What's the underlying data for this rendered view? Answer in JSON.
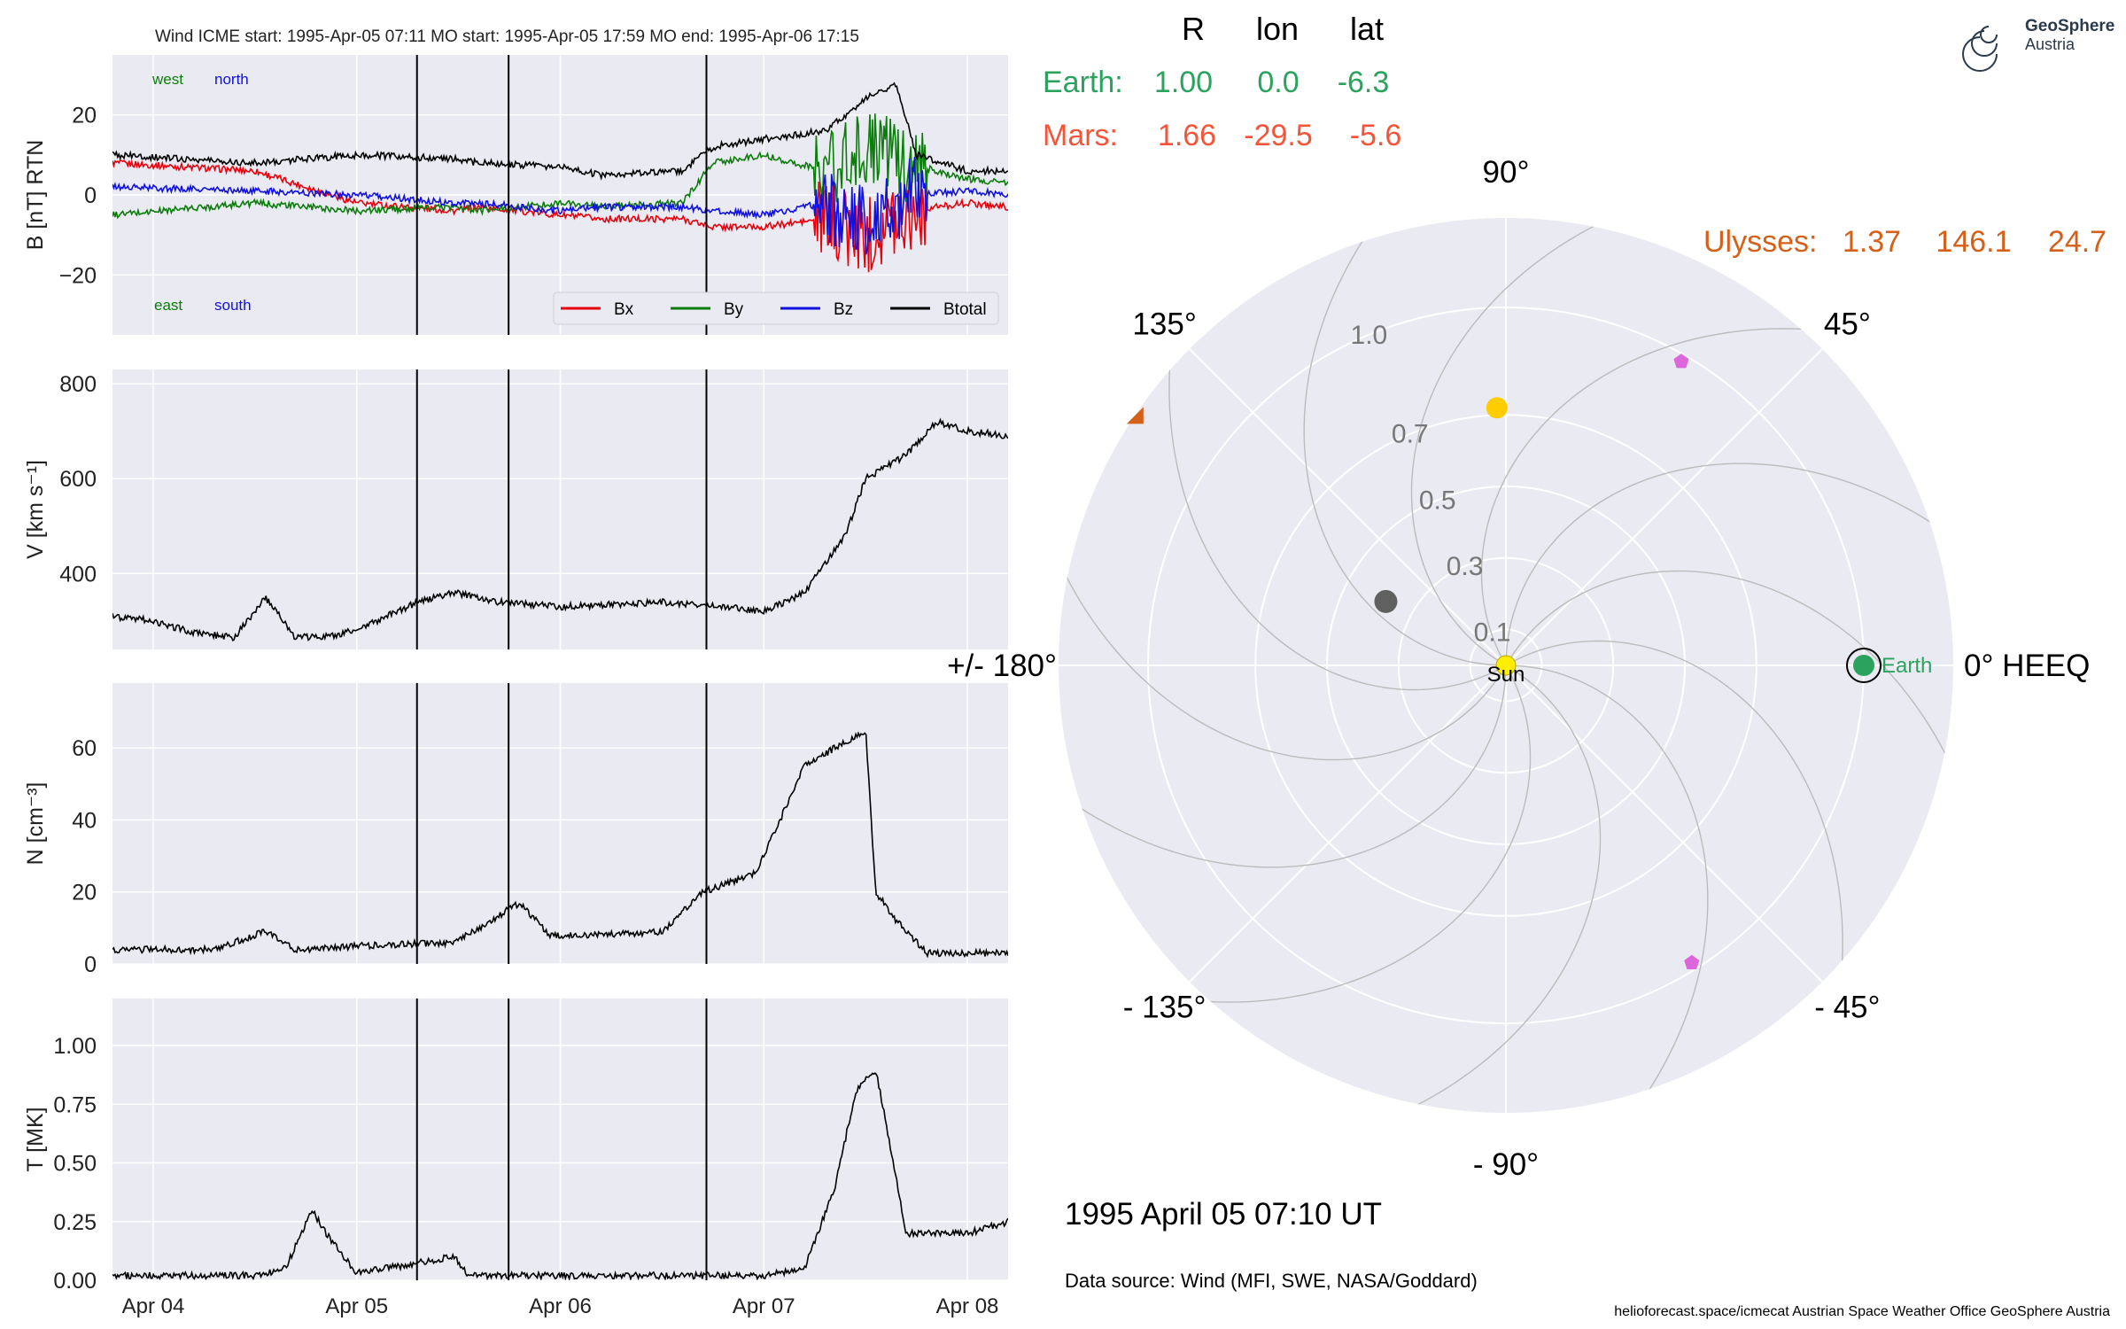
{
  "colors": {
    "panel_bg": "#eaeaf2",
    "grid": "#ffffff",
    "bx": "#e8000b",
    "by": "#0a7d0a",
    "bz": "#1010e0",
    "btotal": "#000000",
    "earth": "#2ca25f",
    "mars": "#f4553a",
    "ulysses": "#d4601a",
    "sun": "#ffee00",
    "venus": "#ffcc00",
    "mercury": "#606060",
    "pentagon": "#dd66dd",
    "spiral": "#bbbbbb"
  },
  "header": {
    "title": "Wind    ICME start: 1995-Apr-05 07:11   MO start: 1995-Apr-05 17:59   MO end: 1995-Apr-06 17:15",
    "logo_line1": "GeoSphere",
    "logo_line2": "Austria"
  },
  "chart_data": [
    {
      "type": "line",
      "ylabel": "B [nT] RTN",
      "ylim": [
        -35,
        35
      ],
      "ytick_labels": [
        "20",
        "0",
        "−20"
      ],
      "yticks": [
        20,
        0,
        -20
      ],
      "xlim": [
        -0.2,
        4.2
      ],
      "xtick_positions": [
        0,
        1,
        2,
        3,
        4
      ],
      "annotations": [
        {
          "text": "west",
          "color": "#0a7d0a"
        },
        {
          "text": "north",
          "color": "#1010e0"
        },
        {
          "text": "east",
          "color": "#0a7d0a"
        },
        {
          "text": "south",
          "color": "#1010e0"
        }
      ],
      "legend": {
        "placement": "lower-right",
        "entries": [
          "Bx",
          "By",
          "Bz",
          "Btotal"
        ]
      },
      "series": [
        {
          "name": "Bx",
          "x": [
            -0.2,
            0.5,
            1.0,
            1.48,
            1.6,
            2.0,
            2.2,
            2.6,
            2.75,
            3.0,
            3.3,
            3.5,
            3.7,
            4.0,
            4.2
          ],
          "y": [
            8,
            6,
            -2,
            -4,
            -3,
            -5,
            -6,
            -6,
            -8,
            -8,
            -6,
            -10,
            -4,
            -2,
            -3
          ]
        },
        {
          "name": "By",
          "x": [
            -0.2,
            0.5,
            1.0,
            1.48,
            1.6,
            2.0,
            2.2,
            2.6,
            2.75,
            3.0,
            3.3,
            3.5,
            3.7,
            4.0,
            4.2
          ],
          "y": [
            -5,
            -2,
            -4,
            -3,
            -4,
            -2,
            -3,
            -2,
            8,
            10,
            6,
            12,
            8,
            4,
            3
          ]
        },
        {
          "name": "Bz",
          "x": [
            -0.2,
            0.5,
            1.0,
            1.48,
            1.6,
            2.0,
            2.2,
            2.6,
            2.75,
            3.0,
            3.3,
            3.5,
            3.7,
            4.0,
            4.2
          ],
          "y": [
            2,
            1,
            0,
            -2,
            -2,
            -4,
            -3,
            -3,
            -4,
            -5,
            -2,
            -8,
            0,
            1,
            0
          ]
        },
        {
          "name": "Btotal",
          "x": [
            -0.2,
            0.5,
            1.0,
            1.48,
            1.6,
            2.0,
            2.2,
            2.6,
            2.75,
            3.0,
            3.3,
            3.5,
            3.65,
            3.75,
            4.0,
            4.2
          ],
          "y": [
            10,
            8,
            10,
            9,
            8,
            7,
            5,
            6,
            12,
            14,
            16,
            24,
            28,
            10,
            6,
            6
          ]
        }
      ]
    },
    {
      "type": "line",
      "ylabel": "V [km s⁻¹]",
      "ylim": [
        240,
        830
      ],
      "ytick_labels": [
        "800",
        "600",
        "400"
      ],
      "yticks": [
        800,
        600,
        400
      ],
      "xlim": [
        -0.2,
        4.2
      ],
      "series": [
        {
          "name": "",
          "x": [
            -0.2,
            0.0,
            0.2,
            0.4,
            0.55,
            0.7,
            0.9,
            1.1,
            1.3,
            1.48,
            1.7,
            2.0,
            2.5,
            2.8,
            3.0,
            3.2,
            3.4,
            3.5,
            3.7,
            3.85,
            4.0,
            4.2
          ],
          "y": [
            310,
            300,
            275,
            265,
            350,
            265,
            270,
            300,
            340,
            360,
            340,
            330,
            340,
            330,
            320,
            360,
            480,
            600,
            650,
            720,
            700,
            690
          ]
        }
      ]
    },
    {
      "type": "line",
      "ylabel": "N [cm⁻³]",
      "ylim": [
        0,
        78
      ],
      "ytick_labels": [
        "60",
        "40",
        "20",
        "0"
      ],
      "yticks": [
        60,
        40,
        20,
        0
      ],
      "xlim": [
        -0.2,
        4.2
      ],
      "series": [
        {
          "name": "",
          "x": [
            -0.2,
            0.3,
            0.55,
            0.7,
            1.0,
            1.48,
            1.6,
            1.8,
            1.95,
            2.2,
            2.5,
            2.7,
            2.95,
            3.0,
            3.2,
            3.35,
            3.5,
            3.55,
            3.65,
            3.8,
            4.0,
            4.2
          ],
          "y": [
            4,
            4,
            9,
            4,
            5,
            6,
            10,
            17,
            8,
            8,
            9,
            20,
            25,
            30,
            55,
            60,
            65,
            20,
            12,
            3,
            3,
            3
          ]
        }
      ]
    },
    {
      "type": "line",
      "ylabel": "T [MK]",
      "ylim": [
        0,
        1.2
      ],
      "ytick_labels": [
        "1.00",
        "0.75",
        "0.50",
        "0.25",
        "0.00"
      ],
      "yticks": [
        1.0,
        0.75,
        0.5,
        0.25,
        0.0
      ],
      "xlim": [
        -0.2,
        4.2
      ],
      "xlabels": [
        "Apr 04",
        "Apr 05",
        "Apr 06",
        "Apr 07",
        "Apr 08"
      ],
      "series": [
        {
          "name": "",
          "x": [
            -0.2,
            0.5,
            0.65,
            0.78,
            0.85,
            1.0,
            1.48,
            1.55,
            2.0,
            2.7,
            3.0,
            3.2,
            3.35,
            3.45,
            3.55,
            3.7,
            4.0,
            4.2
          ],
          "y": [
            0.02,
            0.02,
            0.05,
            0.3,
            0.2,
            0.03,
            0.1,
            0.02,
            0.02,
            0.02,
            0.02,
            0.05,
            0.4,
            0.8,
            0.9,
            0.2,
            0.2,
            0.25
          ]
        }
      ]
    },
    {
      "type": "scatter",
      "name": "polar-orbit-plot",
      "axis_labels": [
        "0° HEEQ",
        "45°",
        "90°",
        "135°",
        "+/- 180°",
        "- 135°",
        "- 90°",
        "- 45°"
      ],
      "axis_angles": [
        0,
        45,
        90,
        135,
        180,
        -135,
        -90,
        -45
      ],
      "radial_labels": [
        "0.1",
        "0.3",
        "0.5",
        "0.7",
        "1.0"
      ],
      "radial_values": [
        0.1,
        0.3,
        0.5,
        0.7,
        1.0
      ],
      "rmax": 1.25,
      "objects": [
        {
          "label": "Sun",
          "r": 0.0,
          "lon": 0.0
        },
        {
          "label": "Earth",
          "r": 1.0,
          "lon": 0.0
        },
        {
          "label": "",
          "r": 0.72,
          "lon": 92.0
        },
        {
          "label": "",
          "r": 0.38,
          "lon": 152.0
        },
        {
          "label": "",
          "r": 1.25,
          "lon": 146.1
        },
        {
          "label": "",
          "r": 0.98,
          "lon": 60.0
        },
        {
          "label": "",
          "r": 0.98,
          "lon": -58.0
        }
      ]
    }
  ],
  "vertical_markers": [
    1.296,
    1.746,
    2.718
  ],
  "polar_table": {
    "headers": [
      "R",
      "lon",
      "lat"
    ],
    "earth": {
      "name": "Earth:",
      "r": "1.00",
      "lon": "0.0",
      "lat": "-6.3"
    },
    "mars": {
      "name": "Mars:",
      "r": "1.66",
      "lon": "-29.5",
      "lat": "-5.6"
    },
    "ulysses": {
      "name": "Ulysses:",
      "r": "1.37",
      "lon": "146.1",
      "lat": "24.7"
    }
  },
  "timestamp": "1995 April 05  07:10 UT",
  "data_source": "Data source: Wind (MFI, SWE, NASA/Goddard)",
  "footer": "helioforecast.space/icmecat   Austrian Space Weather Office   GeoSphere Austria"
}
